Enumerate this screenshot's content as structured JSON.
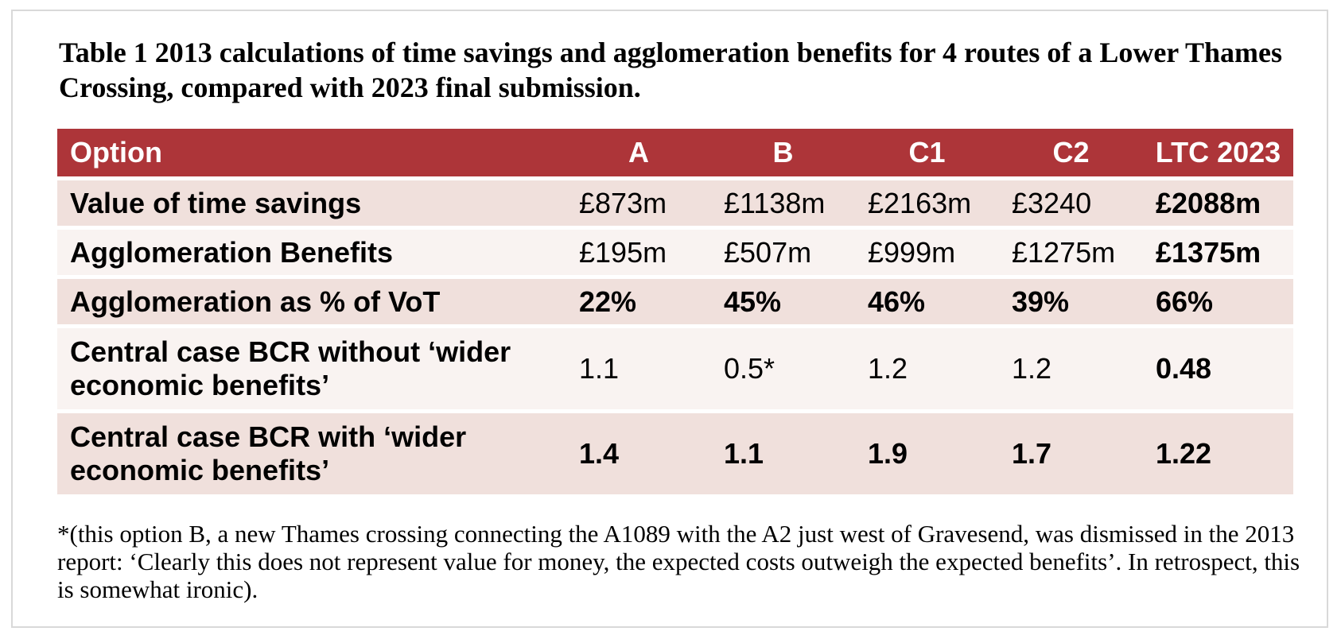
{
  "caption": "Table 1 2013 calculations of time savings and agglomeration benefits for 4 routes of a Lower Thames Crossing, compared with 2023 final submission.",
  "table": {
    "headers": [
      "Option",
      "A",
      "B",
      "C1",
      "C2",
      "LTC 2023"
    ],
    "rows": [
      {
        "label": "Value of time savings",
        "values": [
          "£873m",
          "£1138m",
          "£2163m",
          "£3240",
          "£2088m"
        ]
      },
      {
        "label": "Agglomeration Benefits",
        "values": [
          "£195m",
          "£507m",
          "£999m",
          "£1275m",
          "£1375m"
        ]
      },
      {
        "label": "Agglomeration as % of VoT",
        "values": [
          "22%",
          "45%",
          "46%",
          "39%",
          "66%"
        ]
      },
      {
        "label": "Central case BCR without ‘wider economic benefits’",
        "values": [
          "1.1",
          "0.5*",
          "1.2",
          "1.2",
          "0.48"
        ]
      },
      {
        "label": "Central case BCR with ‘wider economic benefits’",
        "values": [
          "1.4",
          "1.1",
          "1.9",
          "1.7",
          "1.22"
        ]
      }
    ]
  },
  "colors": {
    "header_bg": "#ad3539",
    "row_dark": "#f0e0dc",
    "row_light": "#f9f3f1"
  },
  "footnote": "*(this option B, a new Thames crossing connecting the A1089 with the A2 just west of Gravesend, was dismissed in the 2013 report: ‘Clearly this does not represent value for money, the expected costs outweigh the expected benefits’. In retrospect, this is somewhat ironic)."
}
